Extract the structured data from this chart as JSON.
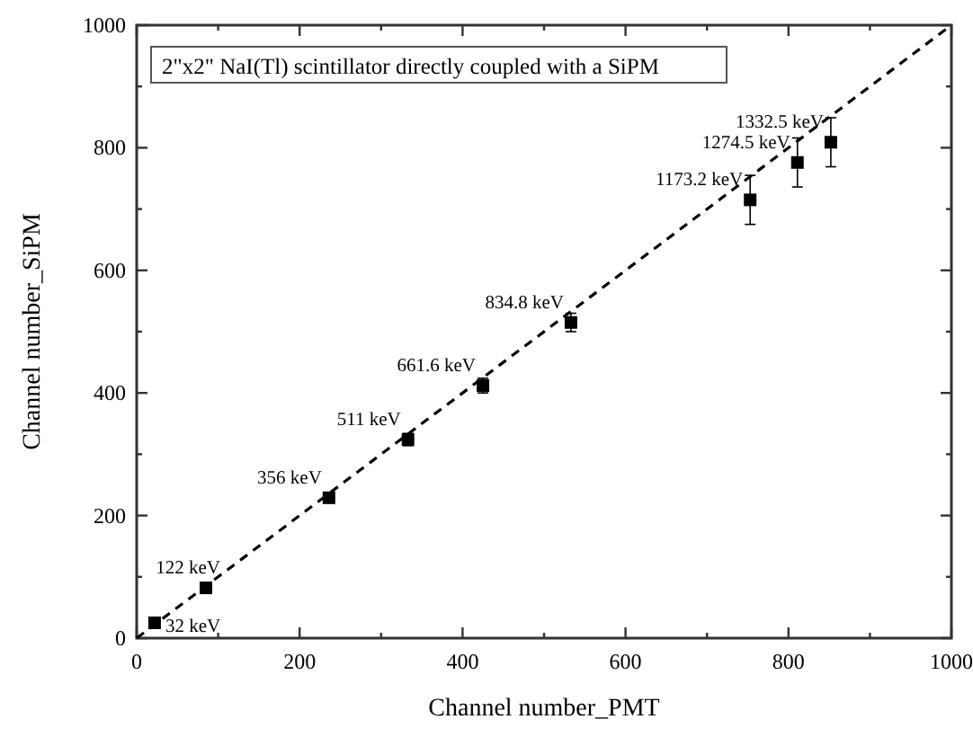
{
  "chart_data": {
    "type": "scatter",
    "xlabel": "Channel number_PMT",
    "ylabel": "Channel number_SiPM",
    "xlim": [
      0,
      1000
    ],
    "ylim": [
      0,
      1000
    ],
    "xticks": [
      0,
      {
        "value": 100,
        "label": null
      },
      200,
      {
        "value": 300,
        "label": null
      },
      400,
      {
        "value": 500,
        "label": null
      },
      600,
      {
        "value": 700,
        "label": null
      },
      800,
      {
        "value": 900,
        "label": null
      },
      1000
    ],
    "yticks": [
      0,
      {
        "value": 100,
        "label": null
      },
      200,
      {
        "value": 300,
        "label": null
      },
      400,
      {
        "value": 500,
        "label": null
      },
      600,
      {
        "value": 700,
        "label": null
      },
      800,
      {
        "value": 900,
        "label": null
      },
      1000
    ],
    "grid": false,
    "series": [
      {
        "color": "#000000",
        "marker": "square",
        "x": [
          22,
          85,
          236,
          333,
          425,
          533,
          753,
          811,
          852
        ],
        "values": [
          25,
          82,
          229,
          324,
          412,
          515,
          715,
          776,
          809
        ],
        "errors": [
          5,
          6,
          8,
          10,
          12,
          15,
          40,
          40,
          40
        ]
      },
      {
        "type": "line",
        "color": "#000000",
        "marker": "none",
        "line_style": "dashed",
        "x": [
          0,
          1000
        ],
        "values": [
          0,
          1000
        ]
      }
    ],
    "annotations": [
      "2\"x2\" NaI(Tl) scintillator directly coupled with a SiPM",
      {
        "text": "32 keV",
        "x": 22,
        "y": 25
      },
      {
        "text": "122 keV",
        "x": 85,
        "y": 82
      },
      {
        "text": "356 keV",
        "x": 236,
        "y": 229
      },
      {
        "text": "511 keV",
        "x": 333,
        "y": 324
      },
      {
        "text": "661.6 keV",
        "x": 425,
        "y": 412
      },
      {
        "text": "834.8 keV",
        "x": 533,
        "y": 515
      },
      {
        "text": "1173.2 keV",
        "x": 753,
        "y": 715
      },
      {
        "text": "1274.5 keV",
        "x": 811,
        "y": 776
      },
      {
        "text": "1332.5 keV",
        "x": 852,
        "y": 809
      }
    ]
  }
}
